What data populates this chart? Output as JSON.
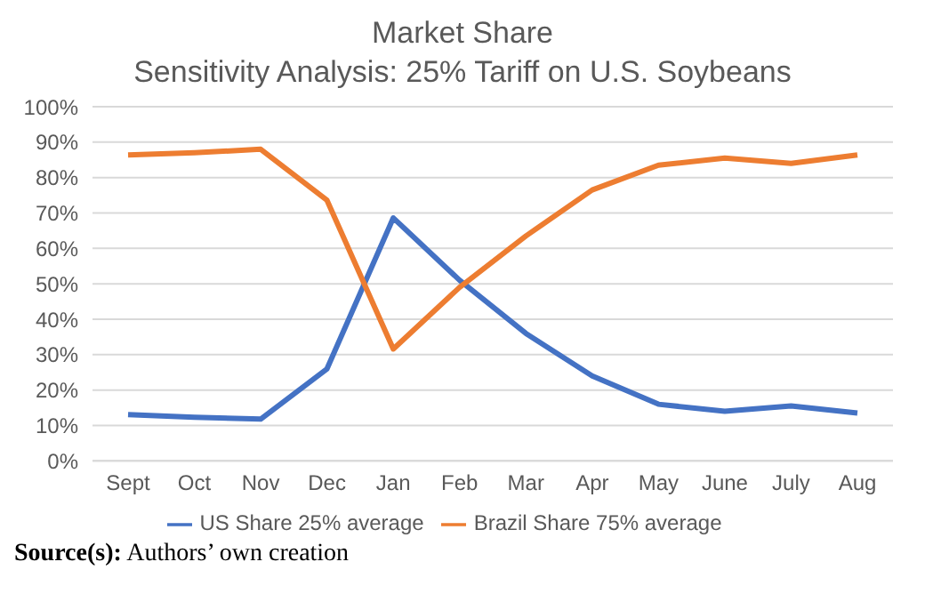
{
  "chart_data": {
    "type": "line",
    "title": "Market Share",
    "subtitle": "Sensitivity Analysis: 25% Tariff on U.S. Soybeans",
    "categories": [
      "Sept",
      "Oct",
      "Nov",
      "Dec",
      "Jan",
      "Feb",
      "Mar",
      "Apr",
      "May",
      "June",
      "July",
      "Aug"
    ],
    "series": [
      {
        "name": "US Share 25% average",
        "color": "#4472c4",
        "values": [
          13.1,
          12.3,
          11.8,
          26,
          68.6,
          51,
          36,
          24,
          16,
          14,
          15.5,
          13.5
        ]
      },
      {
        "name": "Brazil Share 75% average",
        "color": "#ed7d31",
        "values": [
          86.4,
          87,
          88,
          73.6,
          31.6,
          49,
          63.5,
          76.5,
          83.5,
          85.5,
          84,
          86.4
        ]
      }
    ],
    "ylim": [
      0,
      100
    ],
    "yticks": [
      {
        "value": 0,
        "label": "0%"
      },
      {
        "value": 10,
        "label": "10%"
      },
      {
        "value": 20,
        "label": "20%"
      },
      {
        "value": 30,
        "label": "30%"
      },
      {
        "value": 40,
        "label": "40%"
      },
      {
        "value": 50,
        "label": "50%"
      },
      {
        "value": 60,
        "label": "60%"
      },
      {
        "value": 70,
        "label": "70%"
      },
      {
        "value": 80,
        "label": "80%"
      },
      {
        "value": 90,
        "label": "90%"
      },
      {
        "value": 100,
        "label": "100%"
      }
    ],
    "grid": "y",
    "legend": "bottom",
    "marker": "none",
    "line_style": "solid",
    "annotations": [
      "Source(s): Authors’ own creation"
    ]
  }
}
